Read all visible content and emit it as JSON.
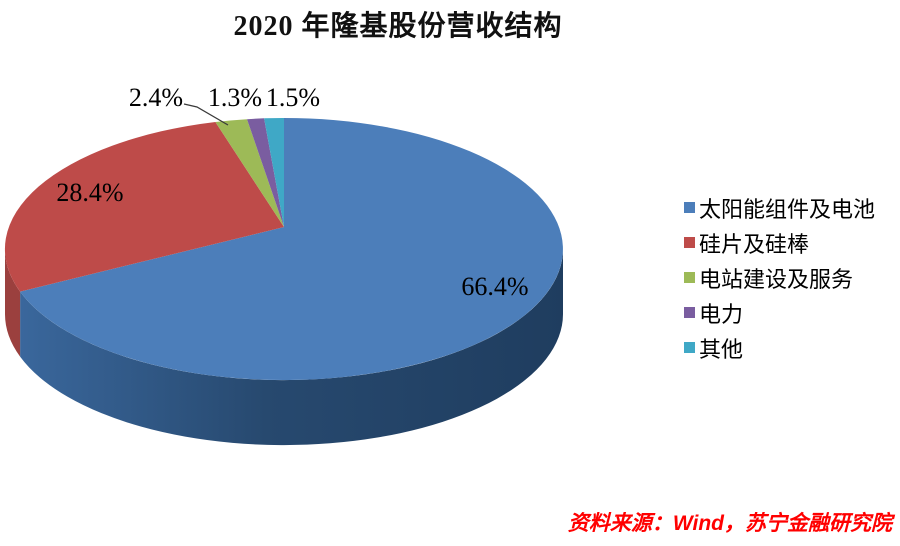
{
  "chart_data": {
    "type": "pie",
    "effect": "3d",
    "title": "2020 年隆基股份营收结构",
    "categories": [
      "太阳能组件及电池",
      "硅片及硅棒",
      "电站建设及服务",
      "电力",
      "其他"
    ],
    "values": [
      66.4,
      28.4,
      2.4,
      1.3,
      1.5
    ],
    "data_labels": [
      "66.4%",
      "28.4%",
      "2.4%",
      "1.3%",
      "1.5%"
    ],
    "colors": [
      "#4C7EBA",
      "#BE4B49",
      "#9DBA57",
      "#7A5DA0",
      "#3FA8C6"
    ],
    "side_colors": [
      "#24466C",
      "#9B403E",
      "#6F8A3C",
      "#564274",
      "#2C7E99"
    ],
    "legend_position": "right",
    "start_angle": 0
  },
  "source_note": {
    "text": "资料来源：Wind，苏宁金融研究院",
    "color": "#FF0000"
  }
}
